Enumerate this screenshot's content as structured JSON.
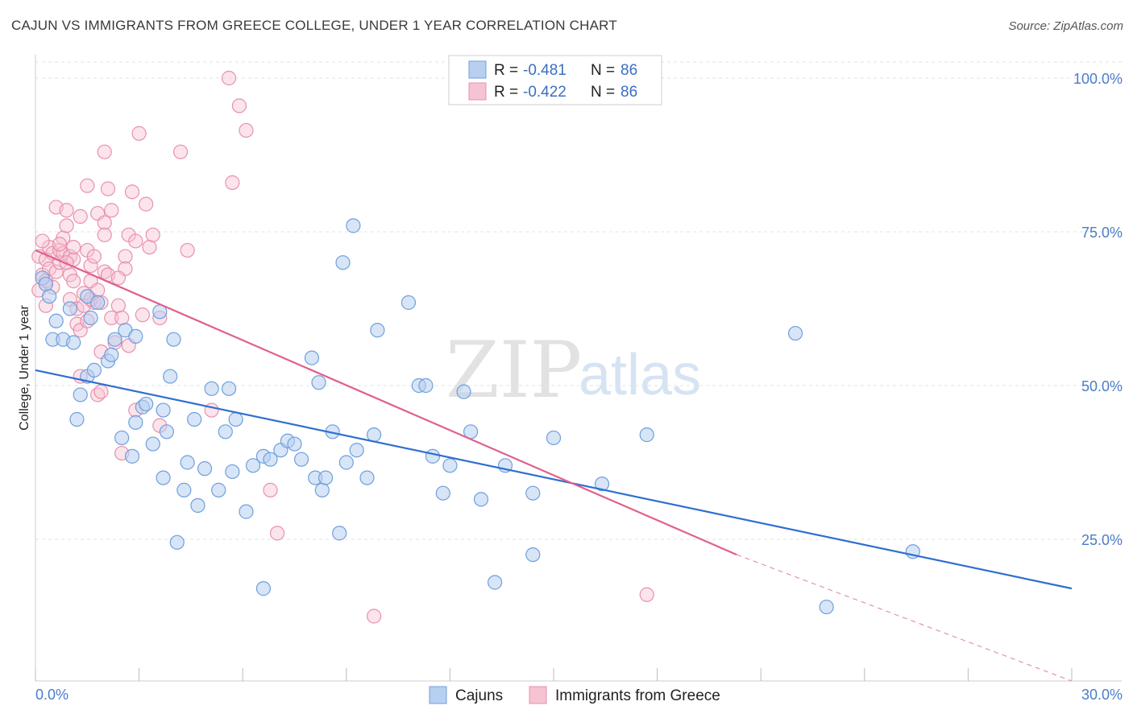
{
  "header": {
    "title": "CAJUN VS IMMIGRANTS FROM GREECE COLLEGE, UNDER 1 YEAR CORRELATION CHART",
    "source": "Source: ZipAtlas.com"
  },
  "watermark": {
    "zip": "ZIP",
    "atlas": "atlas"
  },
  "colors": {
    "blue": "#6f9fdc",
    "blue_fill": "#b7cff0",
    "blue_line": "#2f6fd0",
    "pink": "#e891ad",
    "pink_fill": "#f6c3d3",
    "pink_line": "#e0608c",
    "tick": "#4a7cc9"
  },
  "legend": {
    "rows": [
      {
        "r_label": "R = ",
        "r_value": "-0.481",
        "n_label": "N = ",
        "n_value": "86"
      },
      {
        "r_label": "R = ",
        "r_value": "-0.422",
        "n_label": "N = ",
        "n_value": "86"
      }
    ]
  },
  "bottom_legend": {
    "series1": "Cajuns",
    "series2": "Immigrants from Greece"
  },
  "chart_data": {
    "type": "scatter",
    "title": "CAJUN VS IMMIGRANTS FROM GREECE COLLEGE, UNDER 1 YEAR CORRELATION CHART",
    "xlabel": "",
    "ylabel": "College, Under 1 year",
    "xlim": [
      0,
      30
    ],
    "ylim": [
      0,
      105
    ],
    "x_tick_labels": [
      "0.0%",
      "30.0%"
    ],
    "y_tick_labels": [
      "100.0%",
      "75.0%",
      "50.0%",
      "25.0%"
    ],
    "y_ticks": [
      100,
      75,
      50,
      25
    ],
    "series": [
      {
        "name": "Cajuns",
        "r": -0.481,
        "n": 86,
        "trend": {
          "x": [
            0,
            30
          ],
          "y": [
            52.5,
            17.0
          ],
          "dashed_from": null
        },
        "points": [
          [
            0.2,
            67.5
          ],
          [
            0.3,
            66.5
          ],
          [
            0.4,
            64.5
          ],
          [
            0.5,
            57.5
          ],
          [
            0.6,
            60.5
          ],
          [
            0.8,
            57.5
          ],
          [
            1.0,
            62.5
          ],
          [
            1.1,
            57.0
          ],
          [
            1.2,
            44.5
          ],
          [
            1.3,
            48.5
          ],
          [
            1.5,
            51.5
          ],
          [
            1.5,
            64.5
          ],
          [
            1.6,
            61.0
          ],
          [
            1.7,
            52.5
          ],
          [
            1.8,
            63.5
          ],
          [
            2.1,
            54.0
          ],
          [
            2.2,
            55.0
          ],
          [
            2.3,
            57.5
          ],
          [
            2.5,
            41.5
          ],
          [
            2.6,
            59.0
          ],
          [
            2.8,
            38.5
          ],
          [
            2.9,
            44.0
          ],
          [
            3.1,
            46.5
          ],
          [
            3.2,
            47.0
          ],
          [
            3.4,
            40.5
          ],
          [
            3.6,
            62.0
          ],
          [
            3.7,
            35.0
          ],
          [
            3.8,
            42.5
          ],
          [
            3.9,
            51.5
          ],
          [
            4.0,
            57.5
          ],
          [
            4.1,
            24.5
          ],
          [
            4.3,
            33.0
          ],
          [
            4.4,
            37.5
          ],
          [
            4.6,
            44.5
          ],
          [
            4.7,
            30.5
          ],
          [
            4.9,
            36.5
          ],
          [
            5.1,
            49.5
          ],
          [
            5.3,
            33.0
          ],
          [
            5.5,
            42.5
          ],
          [
            5.6,
            49.5
          ],
          [
            5.7,
            36.0
          ],
          [
            5.8,
            44.5
          ],
          [
            6.1,
            29.5
          ],
          [
            6.3,
            37.0
          ],
          [
            6.6,
            38.5
          ],
          [
            6.6,
            17.0
          ],
          [
            6.8,
            38.0
          ],
          [
            7.1,
            39.5
          ],
          [
            7.3,
            41.0
          ],
          [
            7.5,
            40.5
          ],
          [
            7.7,
            38.0
          ],
          [
            8.0,
            54.5
          ],
          [
            8.1,
            35.0
          ],
          [
            8.2,
            50.5
          ],
          [
            8.3,
            33.0
          ],
          [
            8.4,
            35.0
          ],
          [
            8.6,
            42.5
          ],
          [
            8.8,
            26.0
          ],
          [
            8.9,
            70.0
          ],
          [
            9.0,
            37.5
          ],
          [
            9.2,
            76.0
          ],
          [
            9.3,
            39.5
          ],
          [
            9.6,
            35.0
          ],
          [
            9.8,
            42.0
          ],
          [
            9.9,
            59.0
          ],
          [
            10.8,
            63.5
          ],
          [
            11.1,
            50.0
          ],
          [
            11.3,
            50.0
          ],
          [
            11.5,
            38.5
          ],
          [
            11.8,
            32.5
          ],
          [
            12.0,
            37.0
          ],
          [
            12.4,
            49.0
          ],
          [
            12.6,
            42.5
          ],
          [
            12.9,
            31.5
          ],
          [
            13.3,
            18.0
          ],
          [
            13.6,
            37.0
          ],
          [
            14.4,
            32.5
          ],
          [
            14.4,
            22.5
          ],
          [
            15.0,
            41.5
          ],
          [
            16.4,
            34.0
          ],
          [
            17.7,
            42.0
          ],
          [
            22.0,
            58.5
          ],
          [
            22.9,
            14.0
          ],
          [
            25.4,
            23.0
          ],
          [
            3.7,
            46.0
          ],
          [
            2.9,
            58.0
          ]
        ]
      },
      {
        "name": "Immigrants from Greece",
        "r": -0.422,
        "n": 86,
        "trend": {
          "x": [
            0,
            20.3
          ],
          "y": [
            72.0,
            22.5
          ],
          "dashed_x": [
            20.3,
            30
          ],
          "dashed_y": [
            22.5,
            -1.0
          ]
        },
        "points": [
          [
            0.1,
            71.0
          ],
          [
            0.1,
            65.5
          ],
          [
            0.2,
            68.0
          ],
          [
            0.3,
            70.5
          ],
          [
            0.3,
            63.0
          ],
          [
            0.4,
            72.5
          ],
          [
            0.4,
            69.0
          ],
          [
            0.5,
            71.5
          ],
          [
            0.5,
            66.0
          ],
          [
            0.6,
            79.0
          ],
          [
            0.6,
            68.5
          ],
          [
            0.7,
            72.0
          ],
          [
            0.7,
            70.0
          ],
          [
            0.8,
            74.0
          ],
          [
            0.8,
            71.5
          ],
          [
            0.9,
            78.5
          ],
          [
            0.9,
            76.0
          ],
          [
            1.0,
            71.0
          ],
          [
            1.0,
            68.0
          ],
          [
            1.0,
            64.0
          ],
          [
            1.1,
            70.5
          ],
          [
            1.1,
            67.0
          ],
          [
            1.2,
            62.5
          ],
          [
            1.2,
            60.0
          ],
          [
            1.3,
            77.5
          ],
          [
            1.3,
            59.0
          ],
          [
            1.3,
            51.5
          ],
          [
            1.4,
            63.0
          ],
          [
            1.4,
            65.0
          ],
          [
            1.5,
            82.5
          ],
          [
            1.5,
            72.0
          ],
          [
            1.6,
            69.5
          ],
          [
            1.6,
            67.0
          ],
          [
            1.7,
            71.0
          ],
          [
            1.7,
            63.5
          ],
          [
            1.8,
            78.0
          ],
          [
            1.8,
            65.5
          ],
          [
            1.8,
            48.5
          ],
          [
            1.9,
            55.5
          ],
          [
            1.9,
            49.0
          ],
          [
            2.0,
            88.0
          ],
          [
            2.0,
            76.5
          ],
          [
            2.0,
            68.5
          ],
          [
            2.0,
            74.5
          ],
          [
            2.1,
            82.0
          ],
          [
            2.1,
            68.0
          ],
          [
            2.2,
            61.0
          ],
          [
            2.2,
            78.5
          ],
          [
            2.3,
            57.0
          ],
          [
            2.4,
            63.0
          ],
          [
            2.5,
            61.0
          ],
          [
            2.5,
            39.0
          ],
          [
            2.6,
            71.0
          ],
          [
            2.6,
            69.0
          ],
          [
            2.7,
            74.5
          ],
          [
            2.8,
            81.5
          ],
          [
            2.9,
            73.5
          ],
          [
            2.9,
            46.0
          ],
          [
            3.0,
            91.0
          ],
          [
            3.1,
            61.5
          ],
          [
            3.2,
            79.5
          ],
          [
            3.3,
            72.5
          ],
          [
            3.4,
            74.5
          ],
          [
            3.6,
            61.0
          ],
          [
            3.6,
            43.5
          ],
          [
            4.2,
            88.0
          ],
          [
            4.4,
            72.0
          ],
          [
            5.1,
            46.0
          ],
          [
            5.6,
            100.0
          ],
          [
            5.7,
            83.0
          ],
          [
            5.9,
            95.5
          ],
          [
            6.1,
            91.5
          ],
          [
            6.8,
            33.0
          ],
          [
            7.0,
            26.0
          ],
          [
            9.8,
            12.5
          ],
          [
            17.7,
            16.0
          ],
          [
            0.7,
            73.0
          ],
          [
            1.1,
            72.5
          ],
          [
            1.5,
            60.5
          ],
          [
            0.2,
            73.5
          ],
          [
            0.3,
            67.0
          ],
          [
            1.6,
            64.0
          ],
          [
            2.4,
            67.5
          ],
          [
            0.9,
            70.0
          ],
          [
            2.7,
            56.5
          ],
          [
            1.9,
            63.5
          ]
        ]
      }
    ]
  }
}
